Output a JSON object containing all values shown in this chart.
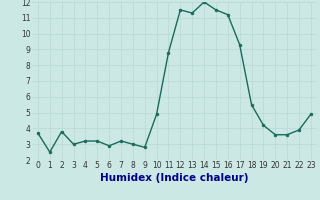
{
  "x": [
    0,
    1,
    2,
    3,
    4,
    5,
    6,
    7,
    8,
    9,
    10,
    11,
    12,
    13,
    14,
    15,
    16,
    17,
    18,
    19,
    20,
    21,
    22,
    23
  ],
  "y": [
    3.7,
    2.5,
    3.8,
    3.0,
    3.2,
    3.2,
    2.9,
    3.2,
    3.0,
    2.8,
    4.9,
    8.8,
    11.5,
    11.3,
    12.0,
    11.5,
    11.2,
    9.3,
    5.5,
    4.2,
    3.6,
    3.6,
    3.9,
    4.9
  ],
  "line_color": "#1a6b5a",
  "marker": "o",
  "marker_size": 2.0,
  "bg_color": "#cce8e4",
  "grid_color_major": "#b8d8d4",
  "grid_color_minor": "#ccdfdd",
  "xlabel": "Humidex (Indice chaleur)",
  "ylim": [
    2,
    12
  ],
  "xlim": [
    -0.5,
    23.5
  ],
  "yticks": [
    2,
    3,
    4,
    5,
    6,
    7,
    8,
    9,
    10,
    11,
    12
  ],
  "xticks": [
    0,
    1,
    2,
    3,
    4,
    5,
    6,
    7,
    8,
    9,
    10,
    11,
    12,
    13,
    14,
    15,
    16,
    17,
    18,
    19,
    20,
    21,
    22,
    23
  ],
  "tick_label_size": 5.5,
  "xlabel_size": 7.5,
  "xlabel_color": "#00008b",
  "line_width": 1.0
}
